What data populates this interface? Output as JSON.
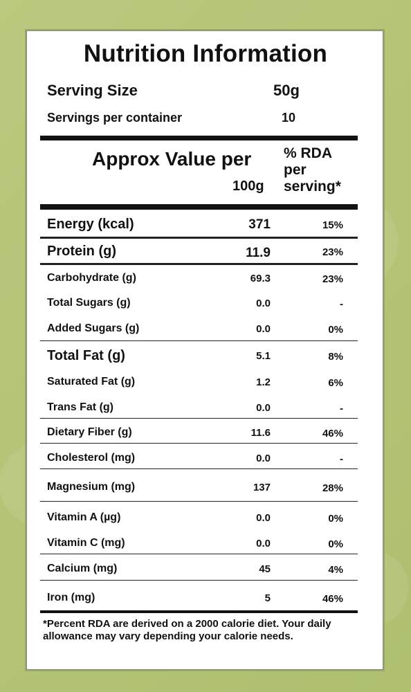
{
  "title": "Nutrition Information",
  "serving": {
    "size_label": "Serving Size",
    "size_value": "50g",
    "per_container_label": "Servings per container",
    "per_container_value": "10"
  },
  "header": {
    "value_label": "Approx Value per",
    "value_unit": "100g",
    "rda_line1": "% RDA",
    "rda_line2": "per",
    "rda_line3": "serving*"
  },
  "rows": [
    {
      "name": "Energy (kcal)",
      "value": "371",
      "rda": "15%"
    },
    {
      "name": "Protein (g)",
      "value": "11.9",
      "rda": "23%"
    },
    {
      "name": "Carbohydrate (g)",
      "value": "69.3",
      "rda": "23%"
    },
    {
      "name": "Total Sugars (g)",
      "value": "0.0",
      "rda": "-"
    },
    {
      "name": "Added Sugars (g)",
      "value": "0.0",
      "rda": "0%"
    },
    {
      "name": "Total Fat (g)",
      "value": "5.1",
      "rda": "8%"
    },
    {
      "name": "Saturated Fat (g)",
      "value": "1.2",
      "rda": "6%"
    },
    {
      "name": "Trans Fat (g)",
      "value": "0.0",
      "rda": "-"
    },
    {
      "name": "Dietary Fiber (g)",
      "value": "11.6",
      "rda": "46%"
    },
    {
      "name": "Cholesterol (mg)",
      "value": "0.0",
      "rda": "-"
    },
    {
      "name": "Magnesium (mg)",
      "value": "137",
      "rda": "28%"
    },
    {
      "name": "Vitamin A (µg)",
      "value": "0.0",
      "rda": "0%"
    },
    {
      "name": "Vitamin C (mg)",
      "value": "0.0",
      "rda": "0%"
    },
    {
      "name": "Calcium (mg)",
      "value": "45",
      "rda": "4%"
    },
    {
      "name": "Iron (mg)",
      "value": "5",
      "rda": "46%"
    }
  ],
  "footnote": "*Percent RDA are derived on a 2000 calorie diet. Your daily allowance may vary depending your calorie needs.",
  "colors": {
    "background": "#b7c77a",
    "label": "#ffffff",
    "text": "#111111"
  }
}
